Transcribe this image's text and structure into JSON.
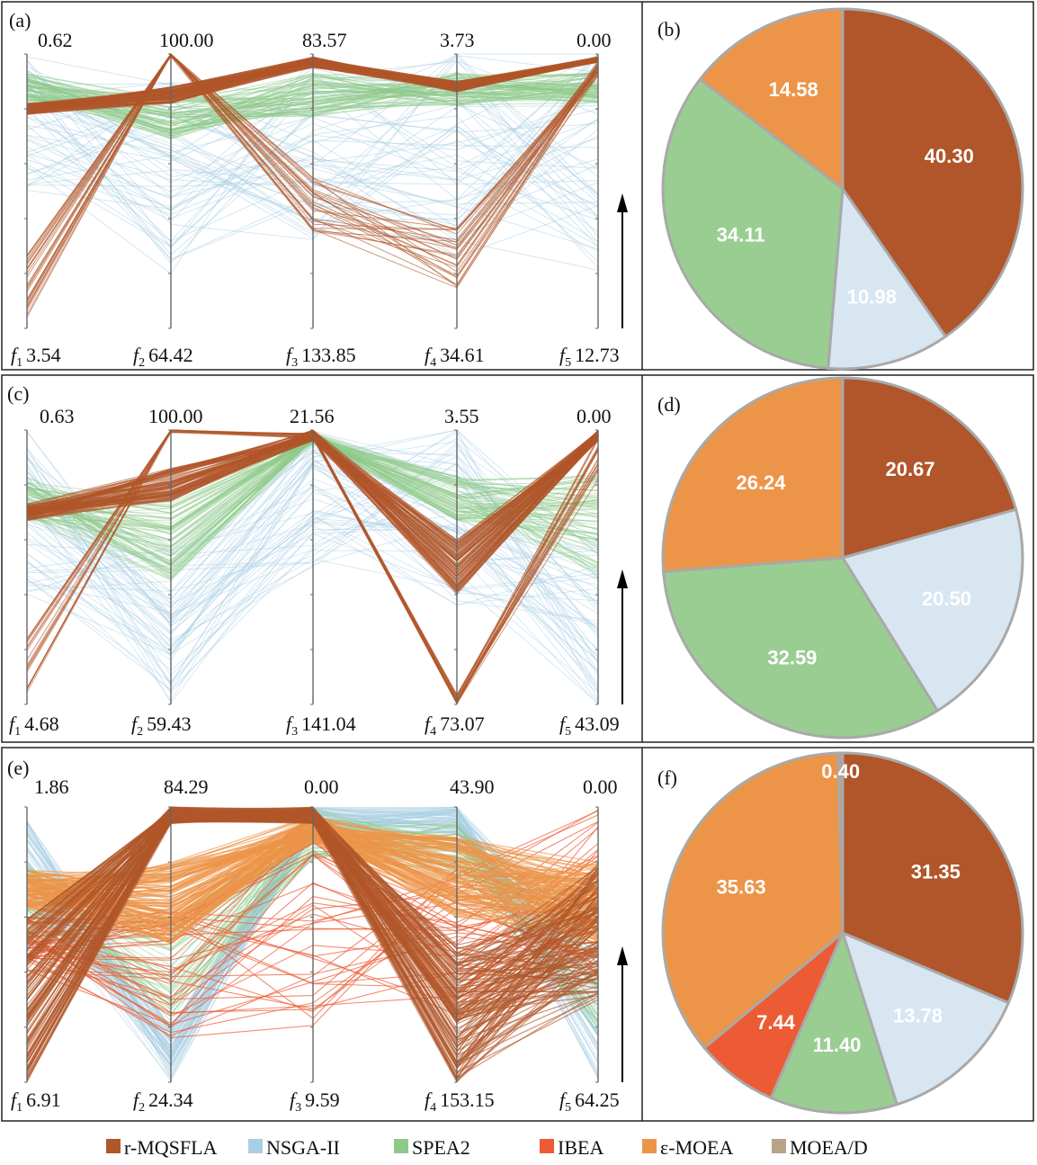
{
  "colors": {
    "r-MQSFLA": "#b0562a",
    "NSGA-II": "#a9cfe4",
    "SPEA2": "#8ec98a",
    "IBEA": "#ec5b33",
    "ε-MOEA": "#ec9548",
    "MOEA/D": "#b8a288",
    "pie_NSGA-II": "#d7e6f1",
    "pie_SPEA2": "#9acd92"
  },
  "legend": [
    "r-MQSFLA",
    "NSGA-II",
    "SPEA2",
    "IBEA",
    "ε-MOEA",
    "MOEA/D"
  ],
  "chart_data": [
    {
      "type": "parallel-coordinates",
      "panel": "(a)",
      "axes": [
        {
          "name": "f",
          "sub": "1",
          "top": "0.62",
          "bottom": "3.54"
        },
        {
          "name": "f",
          "sub": "2",
          "top": "100.00",
          "bottom": "64.42"
        },
        {
          "name": "f",
          "sub": "3",
          "top": "83.57",
          "bottom": "133.85"
        },
        {
          "name": "f",
          "sub": "4",
          "top": "3.73",
          "bottom": "34.61"
        },
        {
          "name": "f",
          "sub": "5",
          "top": "0.00",
          "bottom": "12.73"
        }
      ],
      "series": [
        "NSGA-II",
        "SPEA2",
        "r-MQSFLA"
      ]
    },
    {
      "type": "pie",
      "panel": "(b)",
      "slices": [
        {
          "name": "r-MQSFLA",
          "value": 40.3,
          "label": "40.30"
        },
        {
          "name": "NSGA-II",
          "value": 10.98,
          "label": "10.98"
        },
        {
          "name": "SPEA2",
          "value": 34.11,
          "label": "34.11"
        },
        {
          "name": "ε-MOEA",
          "value": 14.58,
          "label": "14.58"
        }
      ]
    },
    {
      "type": "parallel-coordinates",
      "panel": "(c)",
      "axes": [
        {
          "name": "f",
          "sub": "1",
          "top": "0.63",
          "bottom": "4.68"
        },
        {
          "name": "f",
          "sub": "2",
          "top": "100.00",
          "bottom": "59.43"
        },
        {
          "name": "f",
          "sub": "3",
          "top": "21.56",
          "bottom": "141.04"
        },
        {
          "name": "f",
          "sub": "4",
          "top": "3.55",
          "bottom": "73.07"
        },
        {
          "name": "f",
          "sub": "5",
          "top": "0.00",
          "bottom": "43.09"
        }
      ],
      "series": [
        "NSGA-II",
        "SPEA2",
        "r-MQSFLA"
      ]
    },
    {
      "type": "pie",
      "panel": "(d)",
      "slices": [
        {
          "name": "r-MQSFLA",
          "value": 20.67,
          "label": "20.67"
        },
        {
          "name": "NSGA-II",
          "value": 20.5,
          "label": "20.50"
        },
        {
          "name": "SPEA2",
          "value": 32.59,
          "label": "32.59"
        },
        {
          "name": "ε-MOEA",
          "value": 26.24,
          "label": "26.24"
        }
      ]
    },
    {
      "type": "parallel-coordinates",
      "panel": "(e)",
      "axes": [
        {
          "name": "f",
          "sub": "1",
          "top": "1.86",
          "bottom": "6.91"
        },
        {
          "name": "f",
          "sub": "2",
          "top": "84.29",
          "bottom": "24.34"
        },
        {
          "name": "f",
          "sub": "3",
          "top": "0.00",
          "bottom": "9.59"
        },
        {
          "name": "f",
          "sub": "4",
          "top": "43.90",
          "bottom": "153.15"
        },
        {
          "name": "f",
          "sub": "5",
          "top": "0.00",
          "bottom": "64.25"
        }
      ],
      "series": [
        "NSGA-II",
        "SPEA2",
        "IBEA",
        "ε-MOEA",
        "r-MQSFLA"
      ]
    },
    {
      "type": "pie",
      "panel": "(f)",
      "slices": [
        {
          "name": "r-MQSFLA",
          "value": 31.35,
          "label": "31.35"
        },
        {
          "name": "NSGA-II",
          "value": 13.78,
          "label": "13.78"
        },
        {
          "name": "SPEA2",
          "value": 11.4,
          "label": "11.40"
        },
        {
          "name": "IBEA",
          "value": 7.44,
          "label": "7.44"
        },
        {
          "name": "ε-MOEA",
          "value": 35.63,
          "label": "35.63"
        },
        {
          "name": "MOEA/D",
          "value": 0.4,
          "label": "0.40"
        }
      ]
    }
  ]
}
